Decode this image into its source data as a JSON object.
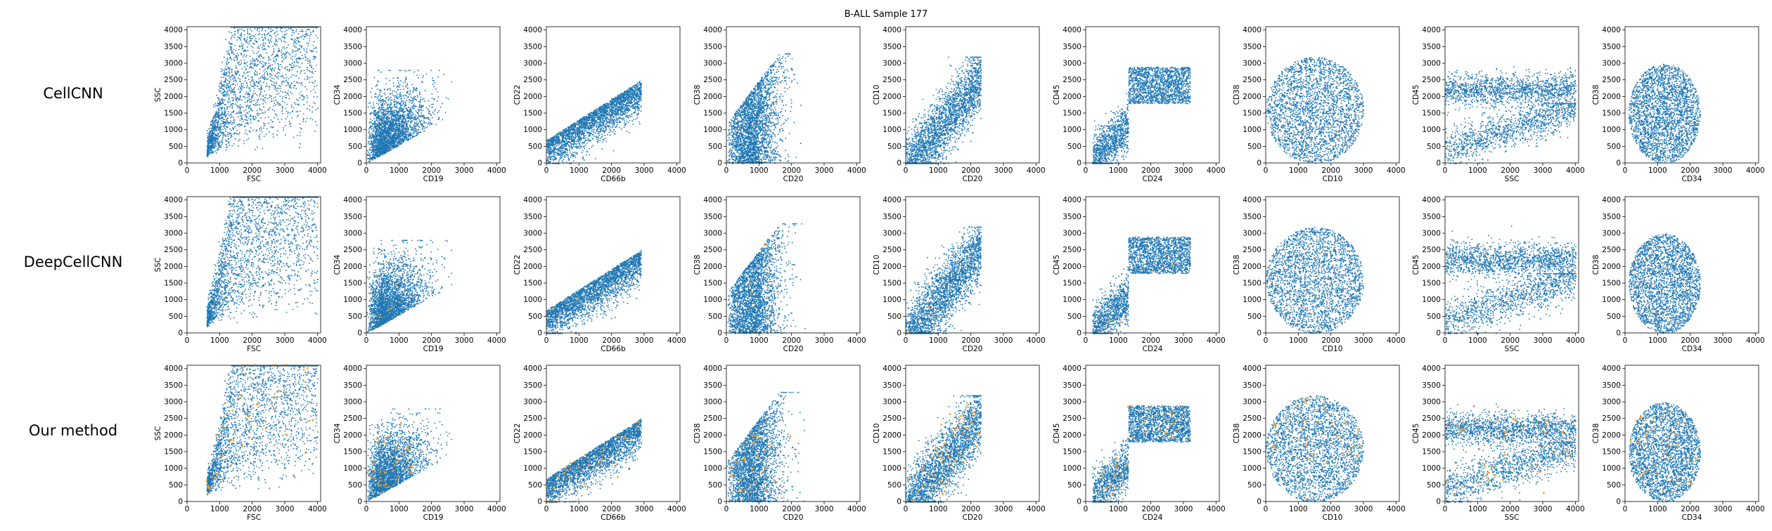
{
  "figure": {
    "suptitle": "B-ALL Sample 177",
    "rows": [
      "CellCNN",
      "DeepCellCNN",
      "Our method"
    ],
    "colors": {
      "background_cells": "#1f77b4",
      "selected_cells": "#ff9f1c"
    }
  },
  "chart_data": {
    "type": "scatter",
    "title": "B-ALL Sample 177",
    "grid": false,
    "legend": "none",
    "xlim": [
      0,
      4100
    ],
    "ylim": [
      0,
      4100
    ],
    "x_ticks": [
      0,
      1000,
      2000,
      3000,
      4000
    ],
    "y_ticks": [
      0,
      500,
      1000,
      1500,
      2000,
      2500,
      3000,
      3500,
      4000
    ],
    "row_names": [
      "CellCNN",
      "DeepCellCNN",
      "Our method"
    ],
    "panels": [
      {
        "xlabel": "FSC",
        "ylabel": "SSC"
      },
      {
        "xlabel": "CD19",
        "ylabel": "CD34"
      },
      {
        "xlabel": "CD66b",
        "ylabel": "CD22"
      },
      {
        "xlabel": "CD20",
        "ylabel": "CD38"
      },
      {
        "xlabel": "CD20",
        "ylabel": "CD10"
      },
      {
        "xlabel": "CD24",
        "ylabel": "CD45"
      },
      {
        "xlabel": "CD10",
        "ylabel": "CD38"
      },
      {
        "xlabel": "SSC",
        "ylabel": "CD45"
      },
      {
        "xlabel": "CD34",
        "ylabel": "CD38"
      }
    ],
    "cell_clouds": [
      {
        "x": [
          600,
          2400
        ],
        "y": [
          0,
          4100
        ]
      },
      {
        "x": [
          0,
          2000
        ],
        "y": [
          0,
          2600
        ]
      },
      {
        "x": [
          0,
          3000
        ],
        "y": [
          0,
          2700
        ]
      },
      {
        "x": [
          0,
          1900
        ],
        "y": [
          0,
          3000
        ]
      },
      {
        "x": [
          0,
          2600
        ],
        "y": [
          0,
          3200
        ]
      },
      {
        "x": [
          0,
          3300
        ],
        "y": [
          0,
          3200
        ]
      },
      {
        "x": [
          0,
          3000
        ],
        "y": [
          0,
          3300
        ]
      },
      {
        "x": [
          0,
          4000
        ],
        "y": [
          0,
          2900
        ]
      },
      {
        "x": [
          0,
          2400
        ],
        "y": [
          0,
          3200
        ]
      }
    ],
    "selected_counts": {
      "CellCNN": [
        0,
        0,
        0,
        0,
        0,
        0,
        0,
        0,
        0
      ],
      "DeepCellCNN": [
        0,
        6,
        3,
        4,
        2,
        4,
        0,
        0,
        0
      ],
      "Our method": [
        45,
        40,
        35,
        35,
        60,
        40,
        35,
        45,
        35
      ]
    }
  }
}
